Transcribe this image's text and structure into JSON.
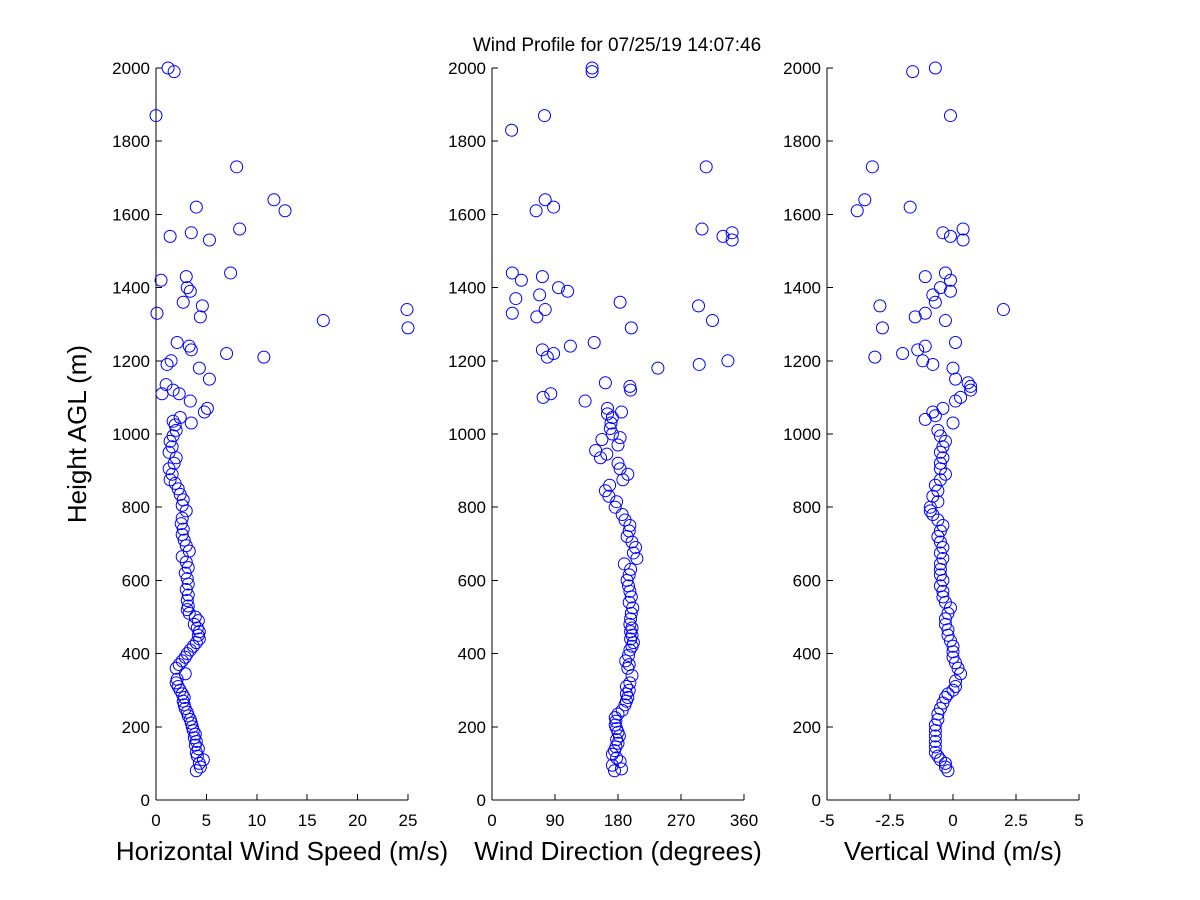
{
  "title": "Wind Profile for  07/25/19 14:07:46",
  "colors": {
    "marker": "#0000ff",
    "axis": "#000000",
    "background": "#ffffff"
  },
  "chart_data": [
    {
      "type": "scatter",
      "xlabel": "Horizontal Wind Speed (m/s)",
      "ylabel": "Height AGL (m)",
      "xlim": [
        0,
        25
      ],
      "ylim": [
        0,
        2000
      ],
      "xticks": [
        "0",
        "5",
        "10",
        "15",
        "20",
        "25"
      ],
      "yticks": [
        "0",
        "200",
        "400",
        "600",
        "800",
        "1000",
        "1200",
        "1400",
        "1600",
        "1800",
        "2000"
      ],
      "grid": false,
      "marker": "open circle",
      "points": [
        [
          4.0,
          80
        ],
        [
          4.4,
          90
        ],
        [
          4.3,
          100
        ],
        [
          4.7,
          110
        ],
        [
          4.1,
          120
        ],
        [
          4.0,
          130
        ],
        [
          4.2,
          140
        ],
        [
          3.9,
          150
        ],
        [
          4.0,
          160
        ],
        [
          3.8,
          170
        ],
        [
          3.9,
          180
        ],
        [
          3.7,
          190
        ],
        [
          3.6,
          200
        ],
        [
          3.5,
          210
        ],
        [
          3.4,
          220
        ],
        [
          3.2,
          230
        ],
        [
          3.1,
          240
        ],
        [
          2.9,
          250
        ],
        [
          2.8,
          260
        ],
        [
          2.7,
          270
        ],
        [
          2.8,
          280
        ],
        [
          2.6,
          290
        ],
        [
          2.4,
          300
        ],
        [
          2.2,
          310
        ],
        [
          2.0,
          320
        ],
        [
          2.1,
          330
        ],
        [
          2.9,
          345
        ],
        [
          2.0,
          360
        ],
        [
          2.3,
          370
        ],
        [
          2.6,
          380
        ],
        [
          2.9,
          390
        ],
        [
          3.1,
          400
        ],
        [
          3.4,
          410
        ],
        [
          3.7,
          420
        ],
        [
          4.0,
          430
        ],
        [
          4.3,
          440
        ],
        [
          4.2,
          450
        ],
        [
          4.3,
          460
        ],
        [
          4.1,
          470
        ],
        [
          3.8,
          480
        ],
        [
          4.2,
          490
        ],
        [
          3.9,
          500
        ],
        [
          3.3,
          510
        ],
        [
          3.1,
          520
        ],
        [
          3.2,
          530
        ],
        [
          3.1,
          545
        ],
        [
          3.2,
          560
        ],
        [
          3.0,
          575
        ],
        [
          3.2,
          590
        ],
        [
          3.1,
          605
        ],
        [
          2.9,
          620
        ],
        [
          3.2,
          635
        ],
        [
          3.0,
          650
        ],
        [
          2.6,
          665
        ],
        [
          3.3,
          680
        ],
        [
          3.0,
          695
        ],
        [
          2.8,
          710
        ],
        [
          2.6,
          725
        ],
        [
          2.7,
          740
        ],
        [
          2.5,
          755
        ],
        [
          2.6,
          770
        ],
        [
          3.0,
          790
        ],
        [
          2.6,
          805
        ],
        [
          2.7,
          820
        ],
        [
          2.4,
          835
        ],
        [
          2.2,
          850
        ],
        [
          1.9,
          865
        ],
        [
          1.4,
          875
        ],
        [
          1.6,
          890
        ],
        [
          1.3,
          905
        ],
        [
          1.8,
          920
        ],
        [
          2.0,
          935
        ],
        [
          1.3,
          950
        ],
        [
          1.6,
          965
        ],
        [
          1.4,
          980
        ],
        [
          1.7,
          995
        ],
        [
          2.0,
          1010
        ],
        [
          1.9,
          1025
        ],
        [
          1.7,
          1035
        ],
        [
          2.4,
          1045
        ],
        [
          3.5,
          1030
        ],
        [
          4.8,
          1060
        ],
        [
          5.1,
          1070
        ],
        [
          3.4,
          1090
        ],
        [
          0.6,
          1110
        ],
        [
          2.3,
          1110
        ],
        [
          1.7,
          1120
        ],
        [
          1.0,
          1135
        ],
        [
          5.3,
          1150
        ],
        [
          4.3,
          1180
        ],
        [
          1.1,
          1190
        ],
        [
          1.5,
          1200
        ],
        [
          10.7,
          1210
        ],
        [
          7.0,
          1220
        ],
        [
          3.5,
          1230
        ],
        [
          3.3,
          1240
        ],
        [
          2.1,
          1250
        ],
        [
          25.0,
          1290
        ],
        [
          16.6,
          1310
        ],
        [
          0.1,
          1330
        ],
        [
          4.4,
          1320
        ],
        [
          24.9,
          1340
        ],
        [
          4.6,
          1350
        ],
        [
          2.7,
          1360
        ],
        [
          3.4,
          1390
        ],
        [
          3.1,
          1400
        ],
        [
          0.5,
          1420
        ],
        [
          3.0,
          1430
        ],
        [
          7.4,
          1440
        ],
        [
          5.3,
          1530
        ],
        [
          1.4,
          1540
        ],
        [
          3.5,
          1550
        ],
        [
          8.3,
          1560
        ],
        [
          12.8,
          1610
        ],
        [
          4.0,
          1620
        ],
        [
          11.7,
          1640
        ],
        [
          8.0,
          1730
        ],
        [
          0.0,
          1870
        ],
        [
          1.8,
          1990
        ],
        [
          1.2,
          2000
        ]
      ]
    },
    {
      "type": "scatter",
      "xlabel": "Wind Direction (degrees)",
      "ylabel": "",
      "xlim": [
        0,
        360
      ],
      "ylim": [
        0,
        2000
      ],
      "xticks": [
        "0",
        "90",
        "180",
        "270",
        "360"
      ],
      "yticks": [
        "0",
        "200",
        "400",
        "600",
        "800",
        "1000",
        "1200",
        "1400",
        "1600",
        "1800",
        "2000"
      ],
      "grid": false,
      "marker": "open circle",
      "points": [
        [
          175,
          80
        ],
        [
          185,
          85
        ],
        [
          172,
          95
        ],
        [
          183,
          105
        ],
        [
          178,
          115
        ],
        [
          172,
          125
        ],
        [
          175,
          135
        ],
        [
          177,
          145
        ],
        [
          180,
          155
        ],
        [
          178,
          165
        ],
        [
          182,
          175
        ],
        [
          180,
          185
        ],
        [
          178,
          195
        ],
        [
          176,
          205
        ],
        [
          177,
          215
        ],
        [
          176,
          225
        ],
        [
          180,
          235
        ],
        [
          186,
          245
        ],
        [
          190,
          260
        ],
        [
          192,
          270
        ],
        [
          194,
          280
        ],
        [
          192,
          290
        ],
        [
          196,
          300
        ],
        [
          192,
          310
        ],
        [
          197,
          320
        ],
        [
          200,
          340
        ],
        [
          194,
          360
        ],
        [
          196,
          370
        ],
        [
          191,
          380
        ],
        [
          195,
          395
        ],
        [
          197,
          410
        ],
        [
          200,
          420
        ],
        [
          202,
          430
        ],
        [
          198,
          440
        ],
        [
          200,
          450
        ],
        [
          198,
          460
        ],
        [
          200,
          470
        ],
        [
          197,
          480
        ],
        [
          198,
          495
        ],
        [
          199,
          510
        ],
        [
          201,
          525
        ],
        [
          196,
          540
        ],
        [
          199,
          555
        ],
        [
          197,
          570
        ],
        [
          195,
          585
        ],
        [
          193,
          600
        ],
        [
          196,
          615
        ],
        [
          198,
          630
        ],
        [
          189,
          645
        ],
        [
          207,
          660
        ],
        [
          202,
          675
        ],
        [
          205,
          690
        ],
        [
          200,
          705
        ],
        [
          193,
          720
        ],
        [
          196,
          735
        ],
        [
          197,
          750
        ],
        [
          190,
          765
        ],
        [
          186,
          780
        ],
        [
          176,
          800
        ],
        [
          178,
          815
        ],
        [
          167,
          830
        ],
        [
          162,
          845
        ],
        [
          168,
          860
        ],
        [
          187,
          875
        ],
        [
          194,
          890
        ],
        [
          183,
          905
        ],
        [
          180,
          920
        ],
        [
          155,
          935
        ],
        [
          164,
          945
        ],
        [
          148,
          955
        ],
        [
          180,
          970
        ],
        [
          157,
          985
        ],
        [
          183,
          990
        ],
        [
          172,
          1000
        ],
        [
          169,
          1015
        ],
        [
          170,
          1030
        ],
        [
          172,
          1045
        ],
        [
          165,
          1055
        ],
        [
          185,
          1060
        ],
        [
          165,
          1070
        ],
        [
          133,
          1090
        ],
        [
          73,
          1100
        ],
        [
          84,
          1110
        ],
        [
          198,
          1120
        ],
        [
          197,
          1130
        ],
        [
          162,
          1140
        ],
        [
          237,
          1180
        ],
        [
          296,
          1190
        ],
        [
          337,
          1200
        ],
        [
          79,
          1210
        ],
        [
          88,
          1220
        ],
        [
          72,
          1230
        ],
        [
          112,
          1240
        ],
        [
          146,
          1250
        ],
        [
          199,
          1290
        ],
        [
          315,
          1310
        ],
        [
          29,
          1330
        ],
        [
          64,
          1320
        ],
        [
          76,
          1340
        ],
        [
          295,
          1350
        ],
        [
          183,
          1360
        ],
        [
          34,
          1370
        ],
        [
          68,
          1380
        ],
        [
          108,
          1390
        ],
        [
          95,
          1400
        ],
        [
          42,
          1420
        ],
        [
          72,
          1430
        ],
        [
          29,
          1440
        ],
        [
          343,
          1530
        ],
        [
          330,
          1540
        ],
        [
          343,
          1550
        ],
        [
          300,
          1560
        ],
        [
          63,
          1610
        ],
        [
          88,
          1620
        ],
        [
          76,
          1640
        ],
        [
          306,
          1730
        ],
        [
          28,
          1830
        ],
        [
          75,
          1870
        ],
        [
          143,
          1990
        ],
        [
          143,
          2000
        ]
      ]
    },
    {
      "type": "scatter",
      "xlabel": "Vertical Wind (m/s)",
      "ylabel": "",
      "xlim": [
        -5,
        5
      ],
      "ylim": [
        0,
        2000
      ],
      "xticks": [
        "-5",
        "-2.5",
        "0",
        "2.5",
        "5"
      ],
      "yticks": [
        "0",
        "200",
        "400",
        "600",
        "800",
        "1000",
        "1200",
        "1400",
        "1600",
        "1800",
        "2000"
      ],
      "grid": false,
      "marker": "open circle",
      "points": [
        [
          -0.2,
          80
        ],
        [
          -0.3,
          90
        ],
        [
          -0.3,
          100
        ],
        [
          -0.5,
          110
        ],
        [
          -0.6,
          120
        ],
        [
          -0.7,
          130
        ],
        [
          -0.7,
          145
        ],
        [
          -0.7,
          160
        ],
        [
          -0.7,
          175
        ],
        [
          -0.7,
          190
        ],
        [
          -0.7,
          205
        ],
        [
          -0.6,
          220
        ],
        [
          -0.6,
          235
        ],
        [
          -0.5,
          250
        ],
        [
          -0.4,
          265
        ],
        [
          -0.3,
          280
        ],
        [
          -0.2,
          290
        ],
        [
          0.0,
          300
        ],
        [
          0.1,
          310
        ],
        [
          0.1,
          325
        ],
        [
          0.3,
          345
        ],
        [
          0.2,
          360
        ],
        [
          0.1,
          375
        ],
        [
          0.0,
          390
        ],
        [
          0.0,
          405
        ],
        [
          0.0,
          420
        ],
        [
          -0.1,
          435
        ],
        [
          -0.2,
          450
        ],
        [
          -0.2,
          465
        ],
        [
          -0.3,
          480
        ],
        [
          -0.3,
          495
        ],
        [
          -0.2,
          510
        ],
        [
          -0.1,
          525
        ],
        [
          -0.3,
          540
        ],
        [
          -0.4,
          555
        ],
        [
          -0.4,
          570
        ],
        [
          -0.5,
          585
        ],
        [
          -0.4,
          600
        ],
        [
          -0.5,
          615
        ],
        [
          -0.5,
          630
        ],
        [
          -0.5,
          645
        ],
        [
          -0.4,
          660
        ],
        [
          -0.5,
          675
        ],
        [
          -0.4,
          690
        ],
        [
          -0.5,
          705
        ],
        [
          -0.6,
          720
        ],
        [
          -0.5,
          735
        ],
        [
          -0.4,
          750
        ],
        [
          -0.6,
          765
        ],
        [
          -0.8,
          780
        ],
        [
          -0.9,
          790
        ],
        [
          -0.9,
          800
        ],
        [
          -0.6,
          815
        ],
        [
          -0.8,
          830
        ],
        [
          -0.6,
          845
        ],
        [
          -0.7,
          860
        ],
        [
          -0.5,
          875
        ],
        [
          -0.3,
          890
        ],
        [
          -0.5,
          905
        ],
        [
          -0.5,
          920
        ],
        [
          -0.4,
          935
        ],
        [
          -0.5,
          950
        ],
        [
          -0.4,
          965
        ],
        [
          -0.3,
          980
        ],
        [
          -0.5,
          995
        ],
        [
          -0.6,
          1010
        ],
        [
          0.0,
          1030
        ],
        [
          -1.1,
          1040
        ],
        [
          -0.7,
          1050
        ],
        [
          -0.8,
          1060
        ],
        [
          -0.4,
          1070
        ],
        [
          0.1,
          1090
        ],
        [
          0.3,
          1100
        ],
        [
          0.7,
          1120
        ],
        [
          0.7,
          1130
        ],
        [
          0.6,
          1140
        ],
        [
          0.1,
          1150
        ],
        [
          0.0,
          1180
        ],
        [
          -0.8,
          1190
        ],
        [
          -3.1,
          1210
        ],
        [
          -1.2,
          1200
        ],
        [
          -2.0,
          1220
        ],
        [
          -1.4,
          1230
        ],
        [
          -1.1,
          1240
        ],
        [
          0.1,
          1250
        ],
        [
          -2.8,
          1290
        ],
        [
          -0.3,
          1310
        ],
        [
          -1.5,
          1320
        ],
        [
          -1.1,
          1330
        ],
        [
          2.0,
          1340
        ],
        [
          -2.9,
          1350
        ],
        [
          -0.7,
          1360
        ],
        [
          -0.8,
          1380
        ],
        [
          -0.1,
          1390
        ],
        [
          -0.5,
          1400
        ],
        [
          -0.1,
          1420
        ],
        [
          -1.1,
          1430
        ],
        [
          -0.3,
          1440
        ],
        [
          0.4,
          1530
        ],
        [
          -0.1,
          1540
        ],
        [
          -0.4,
          1550
        ],
        [
          0.4,
          1560
        ],
        [
          -3.8,
          1610
        ],
        [
          -1.7,
          1620
        ],
        [
          -3.5,
          1640
        ],
        [
          -3.2,
          1730
        ],
        [
          -0.1,
          1870
        ],
        [
          -1.6,
          1990
        ],
        [
          -0.7,
          2000
        ]
      ]
    }
  ]
}
